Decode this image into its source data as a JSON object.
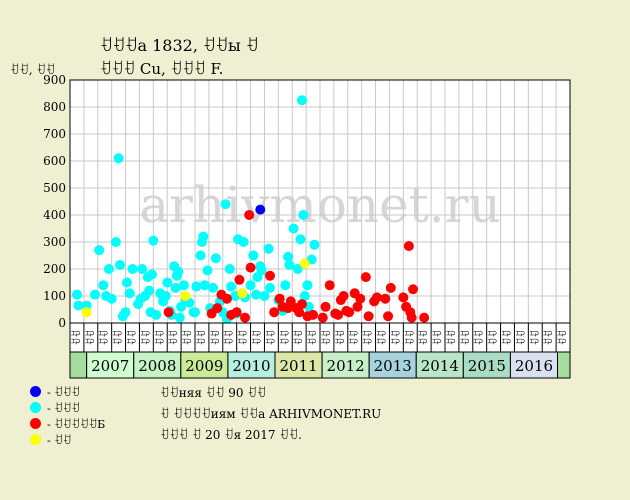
{
  "header": {
    "title": "ꀀꀀꀀа 1832, ꀀꀀы ꀀ",
    "subtitle": "ꀀꀀꀀ Cu, ꀀꀀꀀ F.",
    "y_unit": "ꀀꀀ, ꀀꀀ"
  },
  "legend": [
    {
      "label": "- ꀀꀀꀀ",
      "color": "#0000ee"
    },
    {
      "label": "- ꀀꀀꀀ",
      "color": "#00ffff"
    },
    {
      "label": "- ꀀꀀꀀꀀꀀБ",
      "color": "#ff0000"
    },
    {
      "label": "- ꀀꀀ",
      "color": "#ffff00"
    }
  ],
  "notes": [
    "ꀀꀀняя ꀀꀀ 90 ꀀꀀ",
    "ꀀ ꀀꀀꀀꀀиям ꀀꀀа ARHIVMONET.RU",
    "ꀀꀀꀀ ꀀ 20 ꀀя 2017 ꀀꀀ."
  ],
  "chart_data": {
    "type": "scatter",
    "watermark": "arhivmonet.ru",
    "ylim": [
      0,
      900
    ],
    "yticks": [
      0,
      100,
      200,
      300,
      400,
      500,
      600,
      700,
      800,
      900
    ],
    "x_categories": [
      "ꀀꀀ",
      "ꀀꀀ",
      "ꀀꀀ",
      "ꀀꀀ",
      "ꀀꀀ",
      "ꀀꀀ",
      "ꀀꀀ",
      "ꀀꀀ",
      "ꀀꀀ",
      "ꀀꀀ",
      "ꀀꀀ",
      "ꀀꀀ",
      "ꀀꀀ",
      "ꀀꀀ",
      "ꀀꀀ",
      "ꀀꀀ",
      "ꀀꀀ",
      "ꀀꀀ",
      "ꀀꀀ",
      "ꀀꀀ",
      "ꀀꀀ",
      "ꀀꀀ",
      "ꀀꀀ",
      "ꀀꀀ",
      "ꀀꀀ",
      "ꀀꀀ",
      "ꀀꀀ",
      "ꀀꀀ",
      "ꀀꀀ",
      "ꀀꀀ",
      "ꀀꀀ",
      "ꀀꀀ",
      "ꀀꀀ",
      "ꀀꀀ",
      "ꀀꀀ",
      "ꀀꀀ"
    ],
    "years": [
      {
        "label": "2007",
        "start": 1,
        "end": 5,
        "color": "#cfffd0"
      },
      {
        "label": "2008",
        "start": 5,
        "end": 9,
        "color": "#c6f3c6"
      },
      {
        "label": "2009",
        "start": 9,
        "end": 13,
        "color": "#cceb99"
      },
      {
        "label": "2010",
        "start": 13,
        "end": 17,
        "color": "#b7f0e0"
      },
      {
        "label": "2011",
        "start": 17,
        "end": 21,
        "color": "#dde8a8"
      },
      {
        "label": "2012",
        "start": 21,
        "end": 25,
        "color": "#c8f0c8"
      },
      {
        "label": "2013",
        "start": 25,
        "end": 29,
        "color": "#a6d3dd"
      },
      {
        "label": "2014",
        "start": 29,
        "end": 33,
        "color": "#b9e6c6"
      },
      {
        "label": "2015",
        "start": 33,
        "end": 37,
        "color": "#a9dcc4"
      },
      {
        "label": "2016",
        "start": 37,
        "end": 41,
        "color": "#d8e0f2"
      }
    ],
    "series": [
      {
        "name": "- ꀀꀀꀀ",
        "color": "#0000ee",
        "points": [
          [
            13.7,
            420
          ]
        ]
      },
      {
        "name": "- ꀀꀀꀀ",
        "color": "#00ffff",
        "points": [
          [
            0.5,
            105
          ],
          [
            0.6,
            65
          ],
          [
            1.2,
            65
          ],
          [
            1.8,
            105
          ],
          [
            2.1,
            270
          ],
          [
            2.4,
            140
          ],
          [
            2.6,
            100
          ],
          [
            2.8,
            200
          ],
          [
            3.0,
            90
          ],
          [
            3.3,
            300
          ],
          [
            3.5,
            610
          ],
          [
            3.6,
            215
          ],
          [
            3.8,
            25
          ],
          [
            4.0,
            40
          ],
          [
            4.1,
            150
          ],
          [
            4.3,
            110
          ],
          [
            4.5,
            200
          ],
          [
            4.9,
            70
          ],
          [
            5.1,
            90
          ],
          [
            5.2,
            200
          ],
          [
            5.4,
            100
          ],
          [
            5.6,
            170
          ],
          [
            5.7,
            120
          ],
          [
            5.8,
            40
          ],
          [
            5.9,
            180
          ],
          [
            6.0,
            305
          ],
          [
            6.2,
            30
          ],
          [
            6.5,
            110
          ],
          [
            6.7,
            80
          ],
          [
            6.9,
            100
          ],
          [
            7.0,
            150
          ],
          [
            7.3,
            30
          ],
          [
            7.5,
            210
          ],
          [
            7.6,
            130
          ],
          [
            7.7,
            175
          ],
          [
            7.8,
            190
          ],
          [
            7.9,
            20
          ],
          [
            8.0,
            60
          ],
          [
            8.2,
            140
          ],
          [
            8.3,
            90
          ],
          [
            8.6,
            75
          ],
          [
            8.9,
            40
          ],
          [
            9.1,
            135
          ],
          [
            9.4,
            250
          ],
          [
            9.5,
            300
          ],
          [
            9.6,
            320
          ],
          [
            9.7,
            140
          ],
          [
            9.9,
            195
          ],
          [
            10.1,
            55
          ],
          [
            10.3,
            130
          ],
          [
            10.5,
            240
          ],
          [
            10.8,
            80
          ],
          [
            11.0,
            40
          ],
          [
            11.2,
            440
          ],
          [
            11.3,
            15
          ],
          [
            11.5,
            200
          ],
          [
            11.6,
            135
          ],
          [
            11.9,
            100
          ],
          [
            12.1,
            310
          ],
          [
            12.5,
            300
          ],
          [
            12.6,
            95
          ],
          [
            13.0,
            140
          ],
          [
            13.2,
            250
          ],
          [
            13.4,
            105
          ],
          [
            13.5,
            170
          ],
          [
            13.7,
            210
          ],
          [
            13.8,
            195
          ],
          [
            14.0,
            100
          ],
          [
            14.3,
            275
          ],
          [
            14.4,
            130
          ],
          [
            15.0,
            85
          ],
          [
            15.5,
            140
          ],
          [
            15.7,
            245
          ],
          [
            15.8,
            215
          ],
          [
            16.1,
            350
          ],
          [
            16.4,
            200
          ],
          [
            16.6,
            310
          ],
          [
            16.7,
            825
          ],
          [
            16.8,
            400
          ],
          [
            16.9,
            100
          ],
          [
            17.1,
            140
          ],
          [
            17.2,
            60
          ],
          [
            17.4,
            235
          ],
          [
            17.6,
            290
          ],
          [
            7.2,
            45
          ],
          [
            9.0,
            40
          ],
          [
            12.0,
            35
          ],
          [
            15.3,
            45
          ]
        ]
      },
      {
        "name": "- ꀀꀀꀀꀀꀀБ",
        "color": "#ff0000",
        "points": [
          [
            7.1,
            40
          ],
          [
            10.2,
            35
          ],
          [
            10.6,
            55
          ],
          [
            10.9,
            105
          ],
          [
            11.3,
            90
          ],
          [
            11.6,
            30
          ],
          [
            12.0,
            40
          ],
          [
            12.2,
            160
          ],
          [
            12.6,
            20
          ],
          [
            12.9,
            400
          ],
          [
            13.0,
            205
          ],
          [
            14.4,
            175
          ],
          [
            14.7,
            40
          ],
          [
            15.1,
            90
          ],
          [
            15.3,
            60
          ],
          [
            15.7,
            55
          ],
          [
            15.9,
            80
          ],
          [
            16.3,
            55
          ],
          [
            16.5,
            40
          ],
          [
            16.7,
            70
          ],
          [
            17.1,
            25
          ],
          [
            17.5,
            30
          ],
          [
            18.2,
            20
          ],
          [
            18.4,
            60
          ],
          [
            18.7,
            140
          ],
          [
            19.1,
            35
          ],
          [
            19.3,
            30
          ],
          [
            19.5,
            85
          ],
          [
            19.7,
            100
          ],
          [
            19.9,
            45
          ],
          [
            20.1,
            40
          ],
          [
            20.5,
            110
          ],
          [
            20.7,
            60
          ],
          [
            20.9,
            90
          ],
          [
            21.3,
            170
          ],
          [
            21.5,
            25
          ],
          [
            21.9,
            80
          ],
          [
            22.1,
            95
          ],
          [
            22.7,
            90
          ],
          [
            22.9,
            25
          ],
          [
            23.1,
            130
          ],
          [
            24.0,
            95
          ],
          [
            24.2,
            60
          ],
          [
            24.4,
            285
          ],
          [
            24.5,
            40
          ],
          [
            24.7,
            125
          ],
          [
            24.6,
            20
          ],
          [
            25.5,
            20
          ]
        ]
      },
      {
        "name": "- ꀀꀀ",
        "color": "#ffff00",
        "points": [
          [
            1.2,
            40
          ],
          [
            8.3,
            100
          ],
          [
            12.4,
            110
          ],
          [
            16.9,
            220
          ]
        ]
      }
    ]
  }
}
